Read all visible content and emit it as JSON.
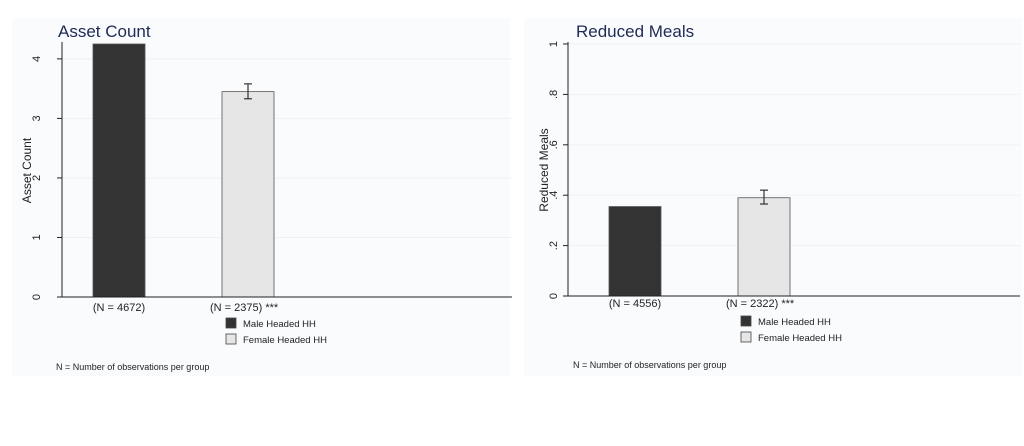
{
  "colors": {
    "male": "#333333",
    "female": "#e6e6e6",
    "title": "#1f2a56",
    "grid": "#eef1f6",
    "axis": "#222222",
    "panel_bg": "#fafbfd"
  },
  "chart_data": [
    {
      "type": "bar",
      "title": "Asset Count",
      "ylabel": "Asset Count",
      "ylim": [
        0,
        4.25
      ],
      "yticks": [
        0,
        1,
        2,
        3,
        4
      ],
      "ytick_labels": [
        "0",
        "1",
        "2",
        "3",
        "4"
      ],
      "grid": true,
      "categories": [
        "Male Headed HH",
        "Female Headed HH"
      ],
      "values": [
        4.25,
        3.45
      ],
      "error_bars": [
        null,
        [
          3.33,
          3.58
        ]
      ],
      "group_labels": [
        "(N = 4672)",
        "(N = 2375) ***"
      ],
      "legend": [
        "Male Headed HH",
        "Female Headed HH"
      ],
      "legend_position": "bottom-center",
      "note": "N = Number of observations per group"
    },
    {
      "type": "bar",
      "title": "Reduced Meals",
      "ylabel": "Reduced Meals",
      "ylim": [
        0,
        1
      ],
      "yticks": [
        0,
        0.2,
        0.4,
        0.6,
        0.8,
        1
      ],
      "ytick_labels": [
        "0",
        ".2",
        ".4",
        ".6",
        ".8",
        "1"
      ],
      "grid": true,
      "categories": [
        "Male Headed HH",
        "Female Headed HH"
      ],
      "values": [
        0.355,
        0.39
      ],
      "error_bars": [
        null,
        [
          0.365,
          0.42
        ]
      ],
      "group_labels": [
        "(N = 4556)",
        "(N = 2322) ***"
      ],
      "legend": [
        "Male Headed HH",
        "Female Headed HH"
      ],
      "legend_position": "bottom-center",
      "note": "N = Number of observations per group"
    }
  ]
}
